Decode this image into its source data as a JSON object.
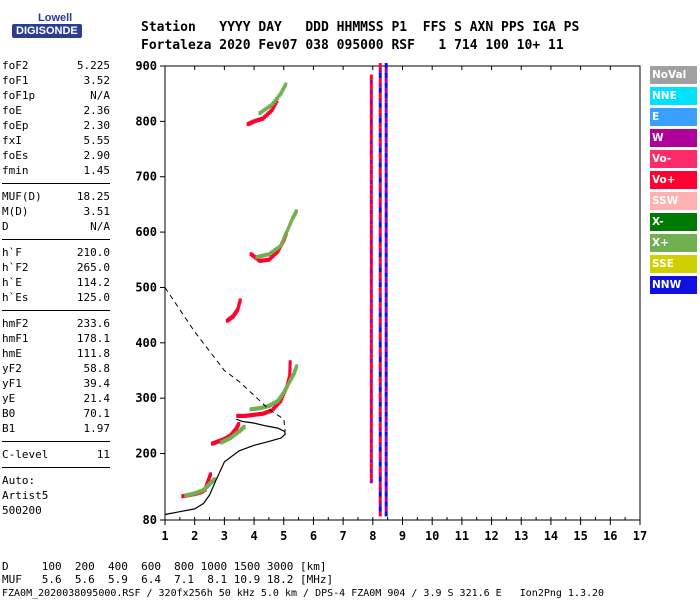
{
  "logo": {
    "line1": "Lowell",
    "line2": "DIGISONDE"
  },
  "header": {
    "row1": "Station   YYYY DAY   DDD HHMMSS P1  FFS S AXN PPS IGA PS",
    "row2": "Fortaleza 2020 Fev07 038 095000 RSF   1 714 100 10+ 11"
  },
  "params": {
    "group1": [
      {
        "label": "foF2",
        "value": "5.225"
      },
      {
        "label": "foF1",
        "value": "3.52"
      },
      {
        "label": "foF1p",
        "value": "N/A"
      },
      {
        "label": "foE",
        "value": "2.36"
      },
      {
        "label": "foEp",
        "value": "2.30"
      },
      {
        "label": "fxI",
        "value": "5.55"
      },
      {
        "label": "foEs",
        "value": "2.90"
      },
      {
        "label": "fmin",
        "value": "1.45"
      }
    ],
    "group2": [
      {
        "label": "MUF(D)",
        "value": "18.25"
      },
      {
        "label": "M(D)",
        "value": "3.51"
      },
      {
        "label": "D",
        "value": "N/A"
      }
    ],
    "group3": [
      {
        "label": "h`F",
        "value": "210.0"
      },
      {
        "label": "h`F2",
        "value": "265.0"
      },
      {
        "label": "h`E",
        "value": "114.2"
      },
      {
        "label": "h`Es",
        "value": "125.0"
      }
    ],
    "group4": [
      {
        "label": "hmF2",
        "value": "233.6"
      },
      {
        "label": "hmF1",
        "value": "178.1"
      },
      {
        "label": "hmE",
        "value": "111.8"
      },
      {
        "label": "yF2",
        "value": "58.8"
      },
      {
        "label": "yF1",
        "value": "39.4"
      },
      {
        "label": "yE",
        "value": "21.4"
      },
      {
        "label": "B0",
        "value": "70.1"
      },
      {
        "label": "B1",
        "value": "1.97"
      }
    ],
    "clevel": {
      "label": "C-level",
      "value": "11"
    },
    "auto": [
      "Auto:",
      "Artist5",
      "500200"
    ]
  },
  "legend": [
    {
      "label": "NoVal",
      "color": "#a0a0a0"
    },
    {
      "label": "NNE",
      "color": "#00e0ff"
    },
    {
      "label": "E",
      "color": "#3aa0ff"
    },
    {
      "label": "W",
      "color": "#b0009a"
    },
    {
      "label": "Vo-",
      "color": "#ff2a6a"
    },
    {
      "label": "Vo+",
      "color": "#ff0030"
    },
    {
      "label": "SSW",
      "color": "#ffb0b0"
    },
    {
      "label": "X-",
      "color": "#007a00"
    },
    {
      "label": "X+",
      "color": "#70b050"
    },
    {
      "label": "SSE",
      "color": "#d0d000"
    },
    {
      "label": "NNW",
      "color": "#1010e0"
    }
  ],
  "footer": {
    "d_row": "D     100  200  400  600  800 1000 1500 3000 [km]",
    "muf_row": "MUF   5.6  5.6  5.9  6.4  7.1  8.1 10.9 18.2 [MHz]",
    "file_row": "FZA0M_2020038095000.RSF / 320fx256h 50 kHz 5.0 km / DPS-4 FZA0M 904 / 3.9 S 321.6 E   Ion2Png 1.3.20"
  },
  "chart_data": {
    "type": "scatter",
    "xlim": [
      1,
      17
    ],
    "ylim": [
      80,
      900
    ],
    "xticks": [
      "1",
      "2",
      "3",
      "4",
      "5",
      "6",
      "7",
      "8",
      "9",
      "10",
      "11",
      "12",
      "13",
      "14",
      "15",
      "16",
      "17"
    ],
    "yticks": [
      "80",
      "200",
      "300",
      "400",
      "500",
      "600",
      "700",
      "800",
      "900"
    ],
    "traces": {
      "E_layer_red": [
        [
          1.6,
          123
        ],
        [
          1.8,
          125
        ],
        [
          2.0,
          127
        ],
        [
          2.2,
          130
        ],
        [
          2.35,
          135
        ],
        [
          2.45,
          150
        ],
        [
          2.55,
          165
        ]
      ],
      "E_layer_green": [
        [
          1.7,
          124
        ],
        [
          2.0,
          128
        ],
        [
          2.3,
          134
        ],
        [
          2.5,
          145
        ],
        [
          2.7,
          155
        ]
      ],
      "F1_red": [
        [
          2.6,
          218
        ],
        [
          2.8,
          222
        ],
        [
          3.0,
          226
        ],
        [
          3.2,
          232
        ],
        [
          3.4,
          245
        ],
        [
          3.5,
          255
        ]
      ],
      "F1_green": [
        [
          2.9,
          220
        ],
        [
          3.2,
          228
        ],
        [
          3.5,
          240
        ],
        [
          3.7,
          250
        ]
      ],
      "F2_red": [
        [
          3.45,
          268
        ],
        [
          3.7,
          268
        ],
        [
          4.0,
          270
        ],
        [
          4.3,
          272
        ],
        [
          4.6,
          278
        ],
        [
          4.9,
          295
        ],
        [
          5.1,
          320
        ],
        [
          5.2,
          340
        ],
        [
          5.22,
          370
        ]
      ],
      "F2_green": [
        [
          3.9,
          280
        ],
        [
          4.2,
          282
        ],
        [
          4.5,
          286
        ],
        [
          4.8,
          295
        ],
        [
          5.0,
          310
        ],
        [
          5.2,
          330
        ],
        [
          5.35,
          345
        ],
        [
          5.45,
          360
        ]
      ],
      "F2_2hop_red": [
        [
          3.9,
          560
        ],
        [
          4.2,
          548
        ],
        [
          4.5,
          550
        ],
        [
          4.8,
          565
        ],
        [
          5.0,
          585
        ],
        [
          5.1,
          600
        ]
      ],
      "F2_2hop_green": [
        [
          4.1,
          555
        ],
        [
          4.5,
          560
        ],
        [
          4.9,
          575
        ],
        [
          5.1,
          600
        ],
        [
          5.3,
          625
        ],
        [
          5.45,
          640
        ]
      ],
      "F2_3hop_red": [
        [
          3.8,
          795
        ],
        [
          4.0,
          800
        ],
        [
          4.3,
          805
        ],
        [
          4.6,
          820
        ],
        [
          4.8,
          840
        ]
      ],
      "F2_3hop_green": [
        [
          4.2,
          815
        ],
        [
          4.6,
          830
        ],
        [
          4.9,
          850
        ],
        [
          5.1,
          870
        ]
      ],
      "F1_multi": [
        [
          3.1,
          440
        ],
        [
          3.3,
          448
        ],
        [
          3.45,
          460
        ],
        [
          3.55,
          480
        ]
      ],
      "profile": [
        [
          1.0,
          90
        ],
        [
          1.5,
          95
        ],
        [
          2.0,
          100
        ],
        [
          2.3,
          110
        ],
        [
          2.5,
          125
        ],
        [
          2.7,
          150
        ],
        [
          3.0,
          185
        ],
        [
          3.5,
          205
        ],
        [
          4.0,
          215
        ],
        [
          4.5,
          222
        ],
        [
          4.9,
          228
        ],
        [
          5.05,
          235
        ],
        [
          5.03,
          240
        ],
        [
          4.8,
          246
        ],
        [
          4.4,
          250
        ],
        [
          4.0,
          255
        ],
        [
          3.6,
          258
        ],
        [
          3.4,
          262
        ]
      ],
      "extrapolation_dashed": [
        [
          1.0,
          500
        ],
        [
          1.5,
          460
        ],
        [
          2.0,
          420
        ],
        [
          2.5,
          385
        ],
        [
          3.0,
          350
        ],
        [
          3.5,
          330
        ],
        [
          4.0,
          305
        ],
        [
          4.5,
          280
        ],
        [
          5.0,
          262
        ],
        [
          5.05,
          240
        ]
      ]
    },
    "vertical_bands": [
      {
        "x": 8.25,
        "ymin": 90,
        "ymax": 900,
        "colors": [
          "#b0009a",
          "#ff0030",
          "#1010e0"
        ]
      },
      {
        "x": 8.45,
        "ymin": 90,
        "ymax": 900,
        "colors": [
          "#1010e0",
          "#b0009a"
        ]
      },
      {
        "x": 7.95,
        "ymin": 150,
        "ymax": 880,
        "colors": [
          "#b0009a",
          "#ff0030"
        ]
      }
    ]
  }
}
